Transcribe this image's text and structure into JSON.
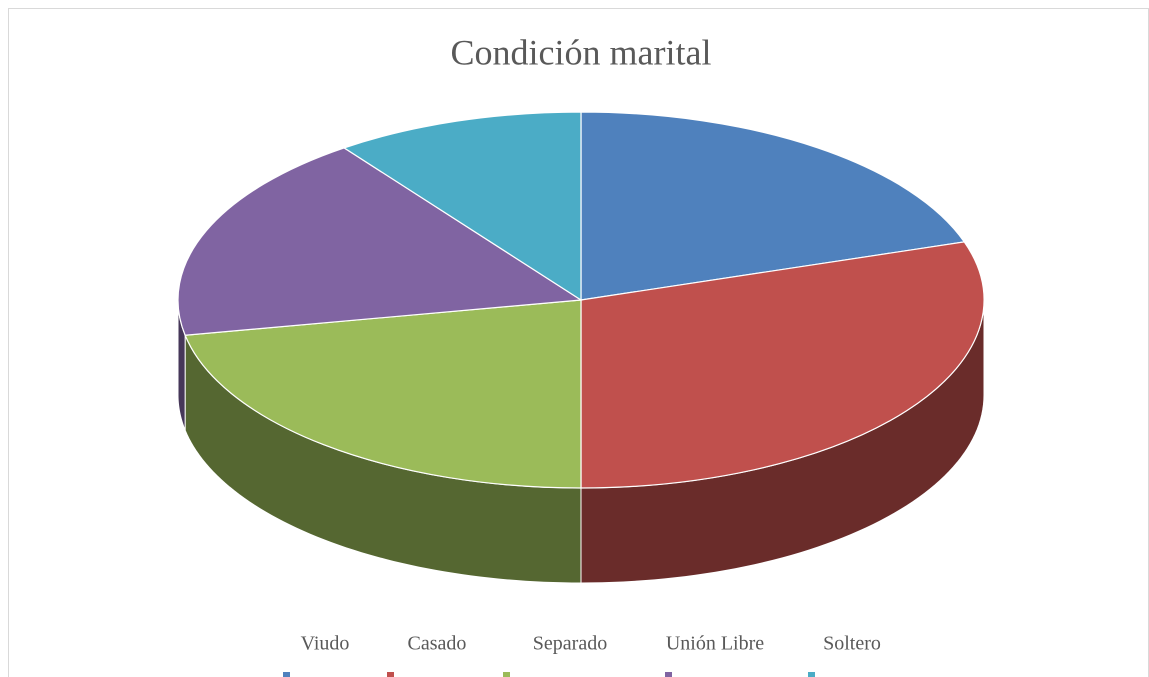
{
  "chart_data": {
    "type": "pie3d",
    "title": "Condición marital",
    "categories": [
      "Viudo",
      "Casado",
      "Separado",
      "Unión Libre",
      "Soltero"
    ],
    "values": [
      20,
      30,
      22,
      18,
      10
    ],
    "colors": [
      "#4f81bd",
      "#c0504d",
      "#9bbb59",
      "#8064a2",
      "#4bacc6"
    ],
    "legend": "bottom"
  }
}
